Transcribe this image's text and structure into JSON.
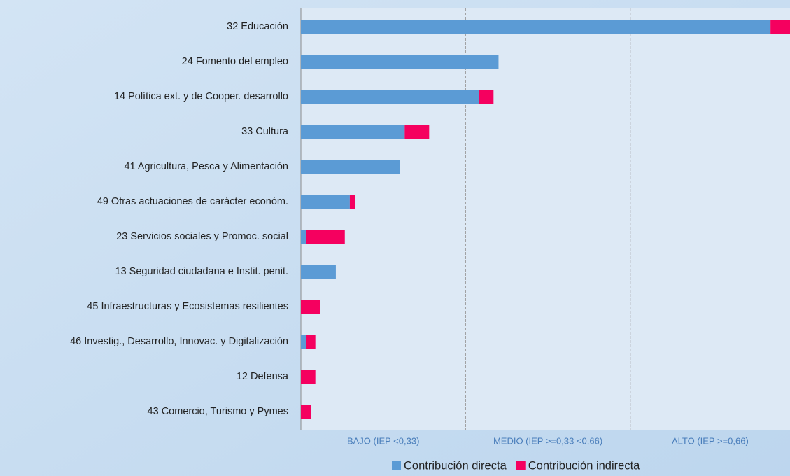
{
  "chart_data": {
    "type": "stacked_barh",
    "categories": [
      "32 Educación",
      "24 Fomento del empleo",
      "14 Política ext. y de Cooper. desarrollo",
      "33 Cultura",
      "41 Agricultura, Pesca y Alimentación",
      "49 Otras actuaciones de carácter económ.",
      "23 Servicios sociales y Promoc. social",
      "13 Seguridad ciudadana e Instit. penit.",
      "45 Infraestructuras y Ecosistemas resilientes",
      "46 Investig., Desarrollo, Innovac. y Digitalización",
      "12 Defensa",
      "43 Comercio, Turismo y Pymes"
    ],
    "series": [
      {
        "name": "Contribución directa",
        "color": "#5b9bd5",
        "values": [
          0.941,
          0.396,
          0.357,
          0.208,
          0.198,
          0.098,
          0.011,
          0.07,
          0,
          0.011,
          0,
          0
        ]
      },
      {
        "name": "Contribución indirecta",
        "color": "#f5005f",
        "values": [
          0.041,
          0,
          0.029,
          0.049,
          0,
          0.011,
          0.077,
          0,
          0.039,
          0.018,
          0.029,
          0.02
        ]
      }
    ],
    "xlim": [
      0,
      0.98
    ],
    "zones": [
      {
        "label": "BAJO (IEP <0,33)",
        "from": 0,
        "to": 0.33
      },
      {
        "label": "MEDIO (IEP >=0,33 <0,66)",
        "from": 0.33,
        "to": 0.66
      },
      {
        "label": "ALTO (IEP >=0,66)",
        "from": 0.66,
        "to": 0.98
      }
    ],
    "legend": "bottom"
  }
}
